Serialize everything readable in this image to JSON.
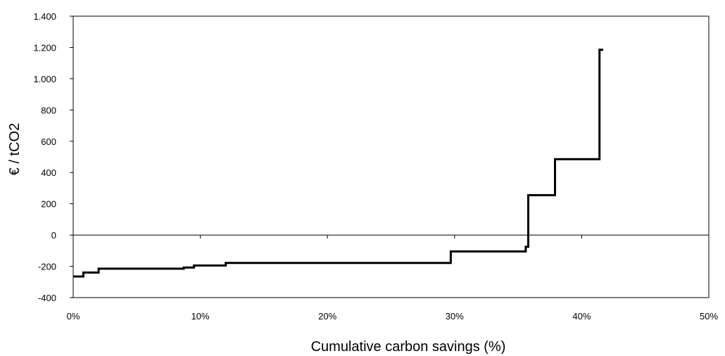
{
  "chart_data": {
    "type": "line",
    "title": "",
    "xlabel": "Cumulative carbon savings (%)",
    "ylabel": "€ / tCO2",
    "xlim": [
      0,
      50
    ],
    "ylim": [
      -400,
      1400
    ],
    "x_ticks": [
      {
        "value": 0,
        "label": "0%"
      },
      {
        "value": 10,
        "label": "10%"
      },
      {
        "value": 20,
        "label": "20%"
      },
      {
        "value": 30,
        "label": "30%"
      },
      {
        "value": 40,
        "label": "40%"
      },
      {
        "value": 50,
        "label": "50%"
      }
    ],
    "y_ticks": [
      {
        "value": 1400,
        "label": "1.400"
      },
      {
        "value": 1200,
        "label": "1.200"
      },
      {
        "value": 1000,
        "label": "1.000"
      },
      {
        "value": 800,
        "label": "800"
      },
      {
        "value": 600,
        "label": "600"
      },
      {
        "value": 400,
        "label": "400"
      },
      {
        "value": 200,
        "label": "200"
      },
      {
        "value": 0,
        "label": "0"
      },
      {
        "value": -200,
        "label": "-200"
      },
      {
        "value": -400,
        "label": "-400"
      }
    ],
    "grid": false,
    "legend": "none",
    "series": [
      {
        "step": true,
        "color": "#000000",
        "points": [
          {
            "x": 0.0,
            "y": -265
          },
          {
            "x": 0.8,
            "y": -265
          },
          {
            "x": 0.8,
            "y": -240
          },
          {
            "x": 2.0,
            "y": -240
          },
          {
            "x": 2.0,
            "y": -215
          },
          {
            "x": 8.7,
            "y": -215
          },
          {
            "x": 8.7,
            "y": -208
          },
          {
            "x": 9.5,
            "y": -208
          },
          {
            "x": 9.5,
            "y": -195
          },
          {
            "x": 12.0,
            "y": -195
          },
          {
            "x": 12.0,
            "y": -178
          },
          {
            "x": 29.7,
            "y": -178
          },
          {
            "x": 29.7,
            "y": -105
          },
          {
            "x": 35.6,
            "y": -105
          },
          {
            "x": 35.6,
            "y": -75
          },
          {
            "x": 35.8,
            "y": -75
          },
          {
            "x": 35.8,
            "y": 255
          },
          {
            "x": 37.9,
            "y": 255
          },
          {
            "x": 37.9,
            "y": 485
          },
          {
            "x": 41.4,
            "y": 485
          },
          {
            "x": 41.4,
            "y": 1185
          },
          {
            "x": 41.7,
            "y": 1185
          }
        ]
      }
    ]
  }
}
